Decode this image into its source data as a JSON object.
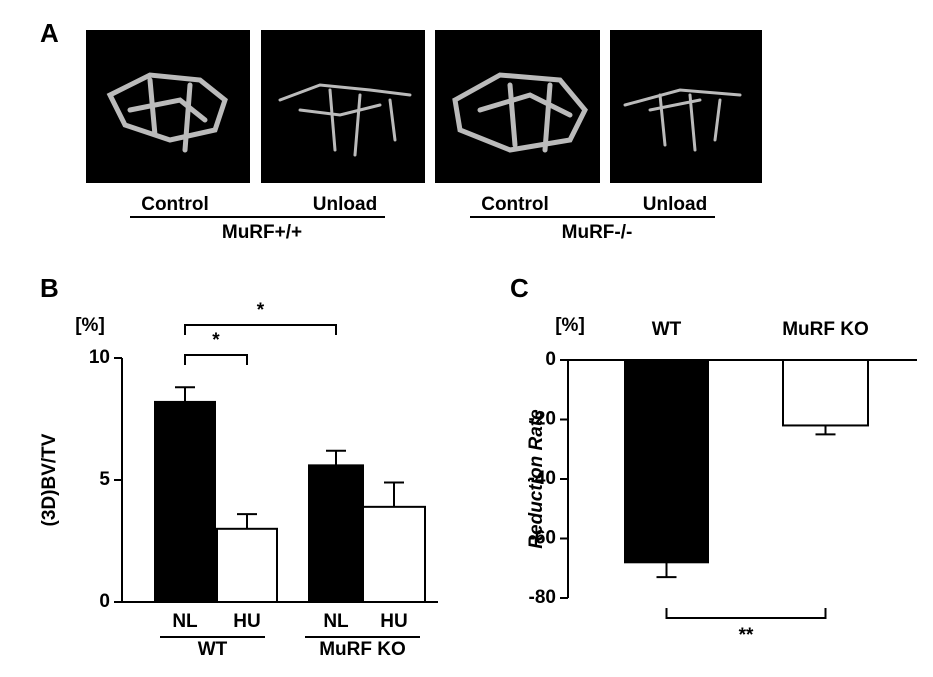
{
  "panel_a": {
    "label": "A",
    "images": [
      {
        "label": "Control"
      },
      {
        "label": "Unload"
      },
      {
        "label": "Control"
      },
      {
        "label": "Unload"
      }
    ],
    "groups": [
      "MuRF+/+",
      "MuRF-/-"
    ]
  },
  "chart_data": [
    {
      "type": "bar",
      "panel": "B",
      "unit": "[%]",
      "ylabel": "(3D)BV/TV",
      "categories": [
        "NL",
        "HU",
        "NL",
        "HU"
      ],
      "groups": [
        "WT",
        "MuRF KO"
      ],
      "values": [
        8.2,
        3.0,
        5.6,
        3.9
      ],
      "errors": [
        0.6,
        0.6,
        0.6,
        1.0
      ],
      "colors": [
        "#000000",
        "#ffffff",
        "#000000",
        "#ffffff"
      ],
      "ylim": [
        0,
        10
      ],
      "yticks": [
        0,
        5,
        10
      ],
      "comparisons": [
        {
          "between": [
            0,
            1
          ],
          "label": "*"
        },
        {
          "between": [
            0,
            2
          ],
          "label": "*"
        }
      ]
    },
    {
      "type": "bar",
      "panel": "C",
      "unit": "[%]",
      "ylabel": "Reduction Rate",
      "categories": [
        "WT",
        "MuRF KO"
      ],
      "values": [
        -68,
        -22
      ],
      "errors": [
        5,
        3
      ],
      "colors": [
        "#000000",
        "#ffffff"
      ],
      "ylim": [
        -80,
        0
      ],
      "yticks": [
        0,
        -20,
        -40,
        -60,
        -80
      ],
      "comparisons": [
        {
          "between": [
            0,
            1
          ],
          "label": "**"
        }
      ]
    }
  ]
}
